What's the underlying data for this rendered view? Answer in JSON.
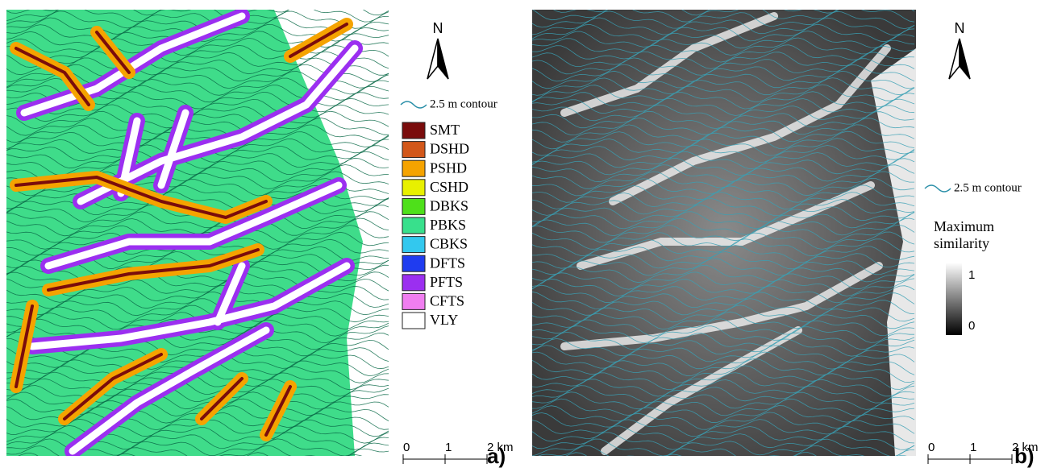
{
  "panel_a": {
    "north": "N",
    "contour_label": "2.5 m contour",
    "legend": [
      {
        "label": "SMT",
        "color": "#7a0c0c"
      },
      {
        "label": "DSHD",
        "color": "#d2571a"
      },
      {
        "label": "PSHD",
        "color": "#f5a300"
      },
      {
        "label": "CSHD",
        "color": "#e8f000"
      },
      {
        "label": "DBKS",
        "color": "#4ee01a"
      },
      {
        "label": "PBKS",
        "color": "#38e08c"
      },
      {
        "label": "CBKS",
        "color": "#33c8ee"
      },
      {
        "label": "DFTS",
        "color": "#1f3cf0"
      },
      {
        "label": "PFTS",
        "color": "#9b2ff0"
      },
      {
        "label": "CFTS",
        "color": "#f07ef0"
      },
      {
        "label": "VLY",
        "color": "#ffffff"
      }
    ],
    "scale": [
      "0",
      "1",
      "2 km"
    ],
    "panel_label": "a)"
  },
  "panel_b": {
    "north": "N",
    "contour_label": "2.5 m contour",
    "colorbar_title": [
      "Maximum",
      "similarity"
    ],
    "colorbar_ticks": [
      "1",
      "0"
    ],
    "scale": [
      "0",
      "1",
      "2 km"
    ],
    "panel_label": "b)"
  }
}
